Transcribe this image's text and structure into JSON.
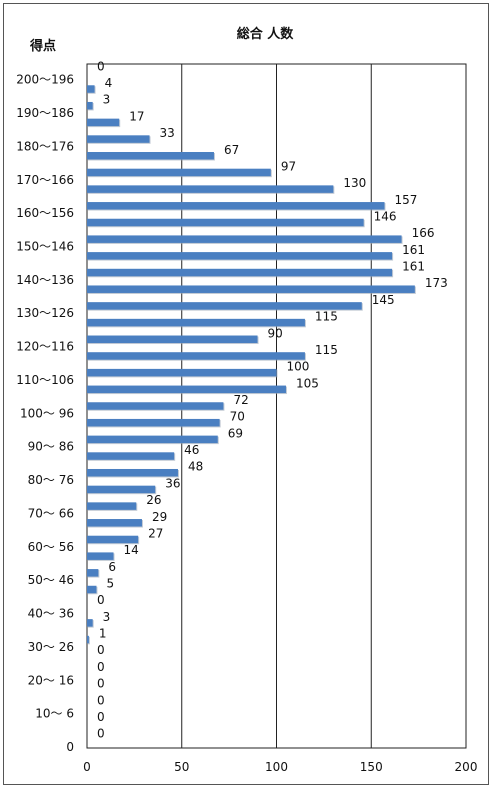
{
  "chart_data": {
    "type": "bar",
    "orientation": "horizontal",
    "title": "総合 人数",
    "ylabel": "得点",
    "xlabel": "",
    "xlim": [
      0,
      200
    ],
    "x_ticks": [
      0,
      50,
      100,
      150,
      200
    ],
    "grid": "vertical",
    "category_labels": [
      "200～196",
      "190～186",
      "180～176",
      "170～166",
      "160～156",
      "150～146",
      "140～136",
      "130～126",
      "120～116",
      "110～106",
      "100～ 96",
      "90～ 86",
      "80～ 76",
      "70～ 66",
      "60～ 56",
      "50～ 46",
      "40～ 36",
      "30～ 26",
      "20～ 16",
      "10～ 6",
      "0"
    ],
    "values": [
      0,
      4,
      3,
      17,
      33,
      67,
      97,
      130,
      157,
      146,
      166,
      161,
      161,
      173,
      145,
      115,
      90,
      115,
      100,
      105,
      72,
      70,
      69,
      46,
      48,
      36,
      26,
      29,
      27,
      14,
      6,
      5,
      0,
      3,
      1,
      0,
      0,
      0,
      0,
      0,
      0
    ],
    "bar_color": "#4a7fc1"
  }
}
